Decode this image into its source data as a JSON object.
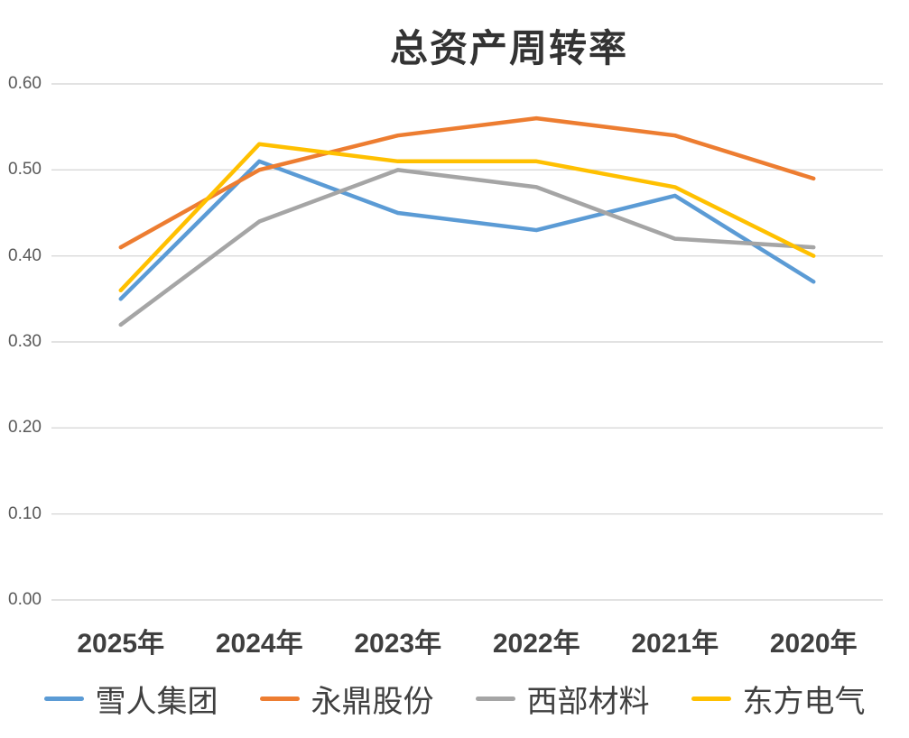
{
  "chart_data": {
    "type": "line",
    "title": "总资产周转率",
    "categories": [
      "2025年",
      "2024年",
      "2023年",
      "2022年",
      "2021年",
      "2020年"
    ],
    "series": [
      {
        "name": "雪人集团",
        "color": "#5B9BD5",
        "values": [
          0.35,
          0.51,
          0.45,
          0.43,
          0.47,
          0.37
        ]
      },
      {
        "name": "永鼎股份",
        "color": "#ED7D31",
        "values": [
          0.41,
          0.5,
          0.54,
          0.56,
          0.54,
          0.49
        ]
      },
      {
        "name": "西部材料",
        "color": "#A5A5A5",
        "values": [
          0.32,
          0.44,
          0.5,
          0.48,
          0.42,
          0.41
        ]
      },
      {
        "name": "东方电气",
        "color": "#FFC000",
        "values": [
          0.36,
          0.53,
          0.51,
          0.51,
          0.48,
          0.4
        ]
      }
    ],
    "ylim": [
      0,
      0.6
    ],
    "yticks": [
      "0.00",
      "0.10",
      "0.20",
      "0.30",
      "0.40",
      "0.50",
      "0.60"
    ],
    "grid": true,
    "legend_position": "bottom",
    "colors": {
      "gridline": "#D9D9D9",
      "y_tick_label": "#595959",
      "x_tick_label": "#3F3F3F",
      "title": "#333333",
      "background": "#FFFFFF"
    }
  }
}
